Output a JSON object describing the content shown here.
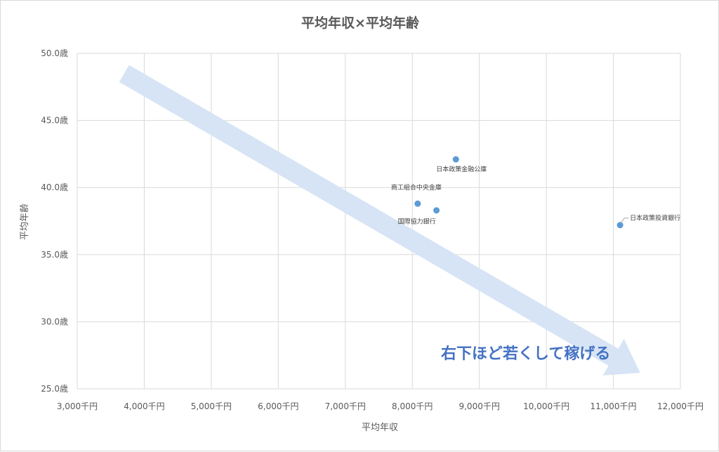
{
  "chart_data": {
    "type": "scatter",
    "title": "平均年収×平均年齢",
    "xlabel": "平均年収",
    "ylabel": "平均年齢",
    "xlim": [
      3000,
      12000
    ],
    "ylim": [
      25.0,
      50.0
    ],
    "x_ticks": [
      "3,000千円",
      "4,000千円",
      "5,000千円",
      "6,000千円",
      "7,000千円",
      "8,000千円",
      "9,000千円",
      "10,000千円",
      "11,000千円",
      "12,000千円"
    ],
    "y_ticks": [
      "25.0歳",
      "30.0歳",
      "35.0歳",
      "40.0歳",
      "45.0歳",
      "50.0歳"
    ],
    "grid": true,
    "legend": "none",
    "point_color": "#5b9bd5",
    "points": [
      {
        "x": 8650,
        "y": 42.1,
        "label": "日本政策金融公庫"
      },
      {
        "x": 8080,
        "y": 38.8,
        "label": "商工組合中央金庫"
      },
      {
        "x": 8360,
        "y": 38.3,
        "label": "国際協力銀行"
      },
      {
        "x": 11100,
        "y": 37.2,
        "label": "日本政策投資銀行"
      }
    ],
    "annotation": {
      "text": "右下ほど若くして稼げる",
      "arrow_from": {
        "x": 3700,
        "y": 48.5
      },
      "arrow_to": {
        "x": 11400,
        "y": 26.2
      },
      "arrow_color": "#d6e4f5",
      "text_color": "#4472c4"
    }
  }
}
